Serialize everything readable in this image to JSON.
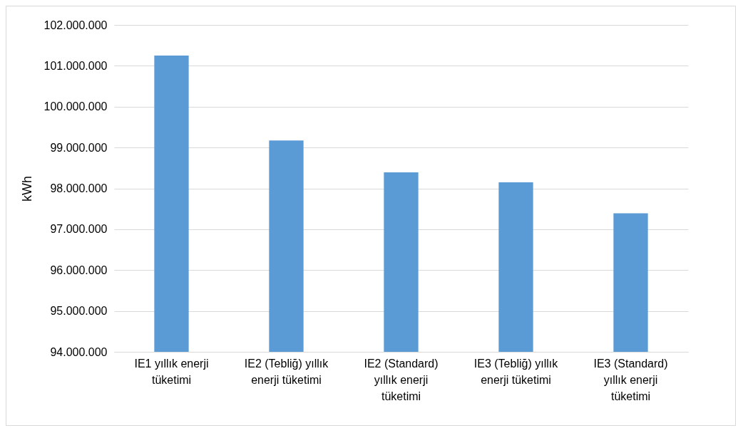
{
  "chart_data": {
    "type": "bar",
    "ylabel": "kWh",
    "categories": [
      "IE1 yıllık enerji tüketimi",
      "IE2 (Tebliğ) yıllık enerji tüketimi",
      "IE2 (Standard) yıllık enerji tüketimi",
      "IE3 (Tebliğ) yıllık enerji tüketimi",
      "IE3 (Standard) yıllık enerji tüketimi"
    ],
    "values": [
      101250000,
      99170000,
      98390000,
      98150000,
      97390000
    ],
    "color": "#5b9bd5",
    "ylim": [
      94000000,
      102000000
    ],
    "yticks": [
      {
        "value": 94000000,
        "label": "94.000.000"
      },
      {
        "value": 95000000,
        "label": "95.000.000"
      },
      {
        "value": 96000000,
        "label": "96.000.000"
      },
      {
        "value": 97000000,
        "label": "97.000.000"
      },
      {
        "value": 98000000,
        "label": "98.000.000"
      },
      {
        "value": 99000000,
        "label": "99.000.000"
      },
      {
        "value": 100000000,
        "label": "100.000.000"
      },
      {
        "value": 101000000,
        "label": "101.000.000"
      },
      {
        "value": 102000000,
        "label": "102.000.000"
      }
    ],
    "grid": "y"
  }
}
